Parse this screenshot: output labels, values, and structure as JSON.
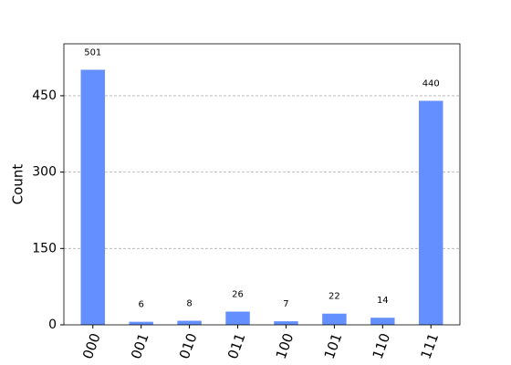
{
  "chart_data": {
    "type": "bar",
    "ylabel": "Count",
    "categories": [
      "000",
      "001",
      "010",
      "011",
      "100",
      "101",
      "110",
      "111"
    ],
    "values": [
      501,
      6,
      8,
      26,
      7,
      22,
      14,
      440
    ],
    "color": "#648fff",
    "ylim": [
      0,
      552
    ],
    "yticks": [
      0,
      150,
      300,
      450
    ],
    "grid": true
  }
}
